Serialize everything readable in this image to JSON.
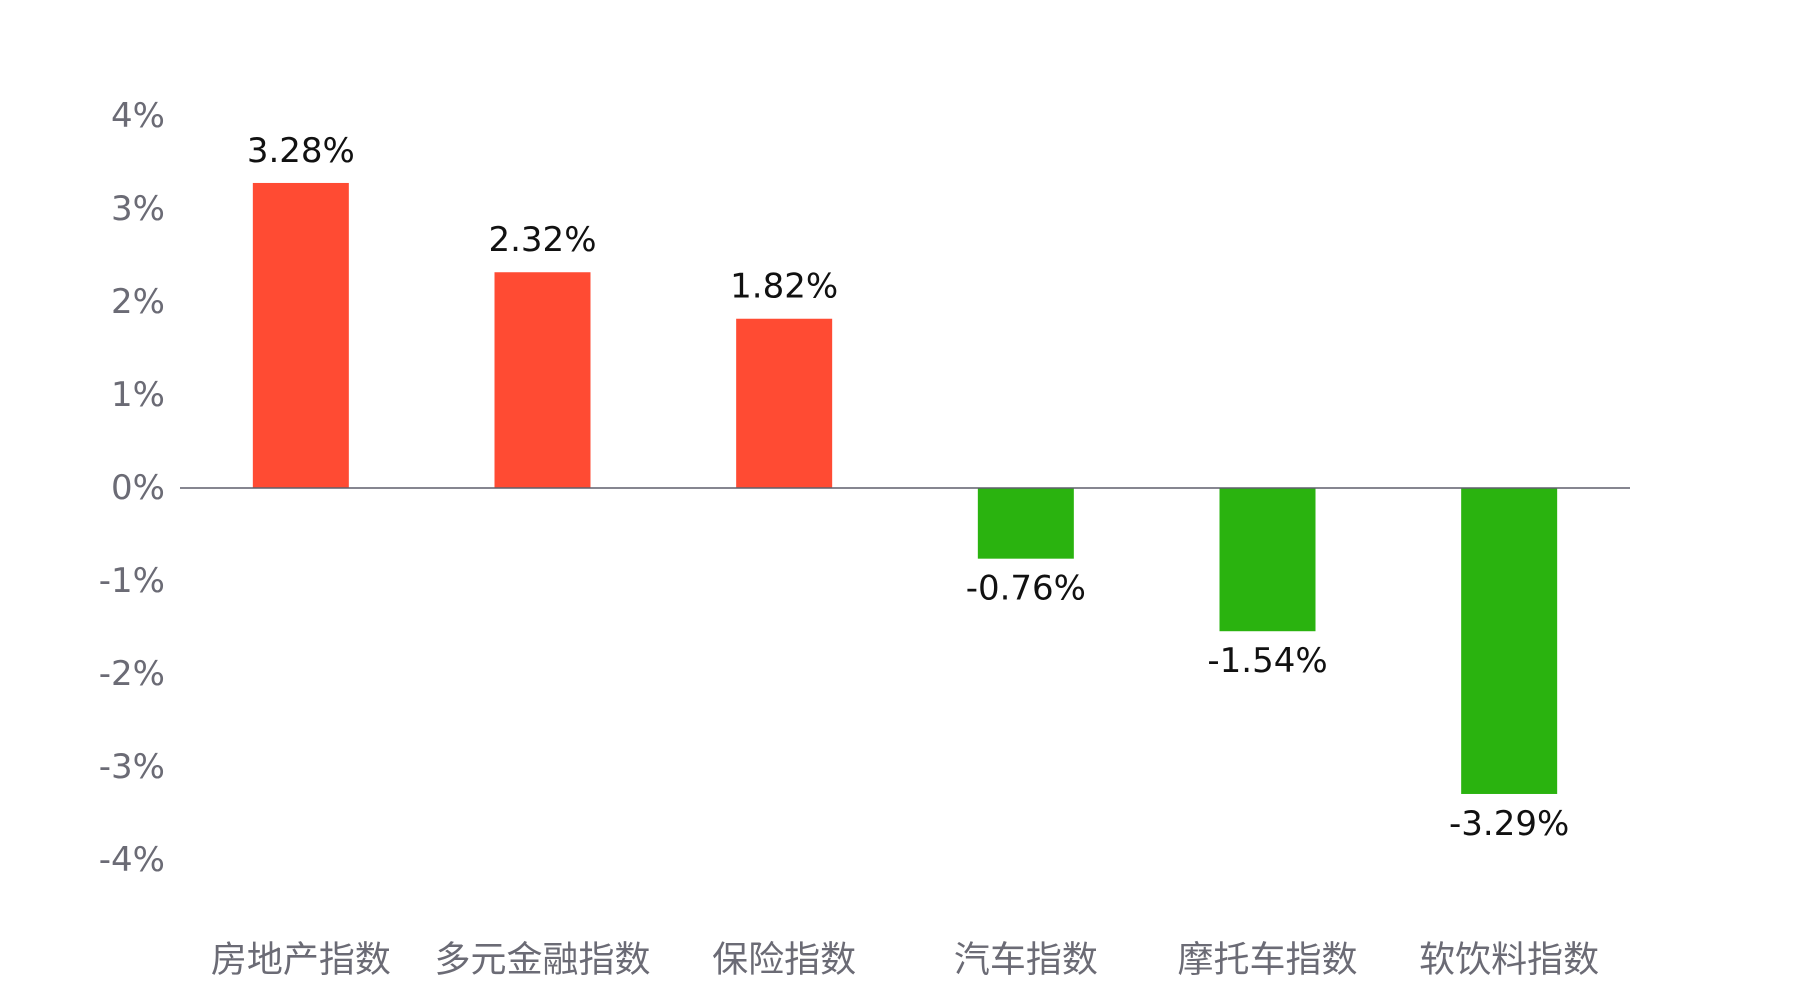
{
  "chart_data": {
    "type": "bar",
    "title": "",
    "xlabel": "",
    "ylabel": "",
    "categories": [
      "房地产指数",
      "多元金融指数",
      "保险指数",
      "汽车指数",
      "摩托车指数",
      "软饮料指数"
    ],
    "values": [
      3.28,
      2.32,
      1.82,
      -0.76,
      -1.54,
      -3.29
    ],
    "value_labels": [
      "3.28%",
      "2.32%",
      "1.82%",
      "-0.76%",
      "-1.54%",
      "-3.29%"
    ],
    "ylim": [
      -4,
      4
    ],
    "yticks": [
      4,
      3,
      2,
      1,
      0,
      -1,
      -2,
      -3,
      -4
    ],
    "ytick_labels": [
      "4%",
      "3%",
      "2%",
      "1%",
      "0%",
      "-1%",
      "-2%",
      "-3%",
      "-4%"
    ],
    "grid": false,
    "legend": "none",
    "colors": {
      "positive": "#ff4b33",
      "negative": "#2ab30f"
    }
  }
}
